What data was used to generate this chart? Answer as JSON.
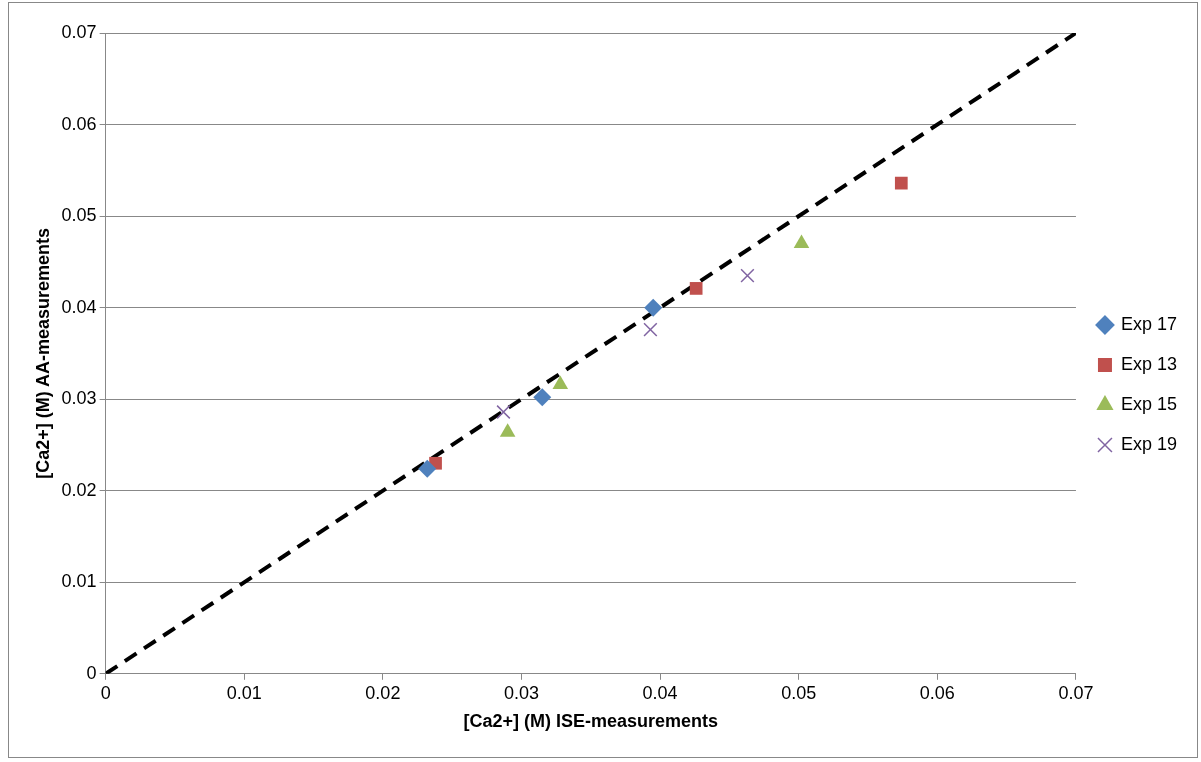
{
  "chart_data": {
    "type": "scatter",
    "xlabel": "[Ca2+] (M) ISE-measurements",
    "ylabel": "[Ca2+] (M) AA-measurements",
    "xlim": [
      0,
      0.07
    ],
    "xticks": [
      0,
      0.01,
      0.02,
      0.03,
      0.04,
      0.05,
      0.06,
      0.07
    ],
    "ylim": [
      0,
      0.07
    ],
    "yticks": [
      0,
      0.01,
      0.02,
      0.03,
      0.04,
      0.05,
      0.06,
      0.07
    ],
    "grid": "y",
    "legend": "right",
    "series": [
      {
        "name": "Exp 17",
        "color": "#4f81bd",
        "marker": "diamond",
        "x": [
          0.0232,
          0.0315,
          0.0395
        ],
        "values": [
          0.0224,
          0.0302,
          0.04
        ]
      },
      {
        "name": "Exp 13",
        "color": "#c0504d",
        "marker": "square",
        "x": [
          0.0238,
          0.0426,
          0.0574
        ],
        "values": [
          0.023,
          0.0421,
          0.0536
        ]
      },
      {
        "name": "Exp 15",
        "color": "#9bbb59",
        "marker": "triangle",
        "x": [
          0.029,
          0.0328,
          0.0502
        ],
        "values": [
          0.0264,
          0.0316,
          0.047
        ]
      },
      {
        "name": "Exp 19",
        "color": "#8064a2",
        "marker": "cross",
        "x": [
          0.0287,
          0.0393,
          0.0463
        ],
        "values": [
          0.0286,
          0.0376,
          0.0435
        ]
      },
      {
        "type": "line",
        "color": "#000000",
        "line_style": "dashed",
        "marker": "none",
        "x": [
          0,
          0.07
        ],
        "values": [
          0,
          0.07
        ]
      }
    ]
  }
}
